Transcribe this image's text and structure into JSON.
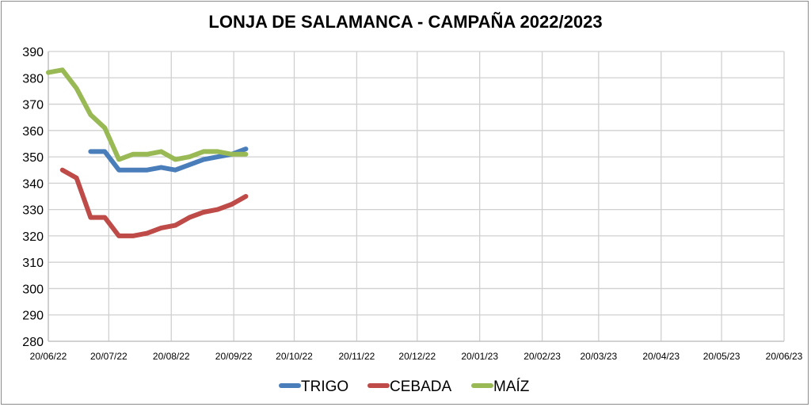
{
  "chart_data": {
    "type": "line",
    "title": "LONJA DE SALAMANCA - CAMPAÑA 2022/2023",
    "xlabel": "",
    "ylabel": "",
    "ylim": [
      280,
      390
    ],
    "yticks": [
      280,
      290,
      300,
      310,
      320,
      330,
      340,
      350,
      360,
      370,
      380,
      390
    ],
    "xlim": [
      "20/06/22",
      "20/06/23"
    ],
    "xticks": [
      "20/06/22",
      "20/07/22",
      "20/08/22",
      "20/09/22",
      "20/10/22",
      "20/11/22",
      "20/12/22",
      "20/01/23",
      "20/02/23",
      "20/03/23",
      "20/04/23",
      "20/05/23",
      "20/06/23"
    ],
    "grid": true,
    "legend_position": "bottom",
    "x": [
      "20/06/22",
      "27/06/22",
      "04/07/22",
      "11/07/22",
      "18/07/22",
      "25/07/22",
      "01/08/22",
      "08/08/22",
      "15/08/22",
      "22/08/22",
      "29/08/22",
      "05/09/22",
      "12/09/22",
      "19/09/22",
      "26/09/22"
    ],
    "series": [
      {
        "name": "TRIGO",
        "color": "#4a7ebb",
        "values": [
          null,
          null,
          null,
          352,
          352,
          345,
          345,
          345,
          346,
          345,
          347,
          349,
          350,
          351,
          353
        ]
      },
      {
        "name": "CEBADA",
        "color": "#be4b48",
        "values": [
          null,
          345,
          342,
          327,
          327,
          320,
          320,
          321,
          323,
          324,
          327,
          329,
          330,
          332,
          335
        ]
      },
      {
        "name": "MAÍZ",
        "color": "#98b954",
        "values": [
          382,
          383,
          376,
          366,
          361,
          349,
          351,
          351,
          352,
          349,
          350,
          352,
          352,
          351,
          351
        ]
      }
    ]
  }
}
